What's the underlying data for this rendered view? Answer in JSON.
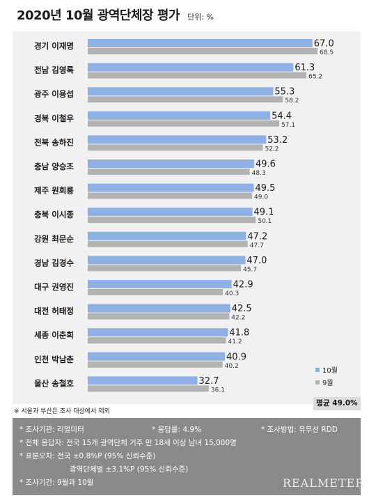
{
  "header": {
    "title": "2020년 10월 광역단체장 평가",
    "unit": "단위: %"
  },
  "chart_data": {
    "type": "bar",
    "orientation": "horizontal",
    "categories": [
      "경기 이재명",
      "전남 김영록",
      "광주 이용섭",
      "경북 이철우",
      "전북 송하진",
      "충남 양승조",
      "제주 원희룡",
      "충북 이시종",
      "강원 최문순",
      "경남 김경수",
      "대구 권영진",
      "대전 허태정",
      "세종 이춘희",
      "인천 박남춘",
      "울산 송철호"
    ],
    "series": [
      {
        "name": "10월",
        "color": "#8fb0e2",
        "values": [
          67.0,
          61.3,
          55.3,
          54.4,
          53.2,
          49.6,
          49.5,
          49.1,
          47.2,
          47.0,
          42.9,
          42.5,
          41.8,
          40.9,
          32.7
        ],
        "labels": [
          "67.0",
          "61.3",
          "55.3",
          "54.4",
          "53.2",
          "49.6",
          "49.5",
          "49.1",
          "47.2",
          "47.0",
          "42.9",
          "42.5",
          "41.8",
          "40.9",
          "32.7"
        ]
      },
      {
        "name": "9월",
        "color": "#b3b3b3",
        "values": [
          68.5,
          65.2,
          58.2,
          57.1,
          52.2,
          48.3,
          49.0,
          50.1,
          47.7,
          45.7,
          40.3,
          42.2,
          41.2,
          40.2,
          36.1
        ],
        "labels": [
          "68.5",
          "65.2",
          "58.2",
          "57.1",
          "52.2",
          "48.3",
          "49.0",
          "50.1",
          "47.7",
          "45.7",
          "40.3",
          "42.2",
          "41.2",
          "40.2",
          "36.1"
        ]
      }
    ],
    "legend_position": "bottom-right",
    "grid": false
  },
  "average": {
    "label": "평균 49.0%"
  },
  "footnote": "※ 서울과 부산은 조사 대상에서 제외",
  "info": {
    "agency": "* 조사기관: 리얼미터",
    "response_rate": "* 응답률: 4.9%",
    "method": "* 조사방법: 유무선 RDD",
    "respondents": "* 전체 응답자: 전국 15개 광역단체 거주 만 18세 이상 남녀 15,000명",
    "error_national": "* 표본오차: 전국 ±0.8%P (95% 신뢰수준)",
    "error_regional": "광역단체별 ±3.1%P (95% 신뢰수준)",
    "period": "* 조사기간: 9월과 10월",
    "brand": "REALMETER"
  }
}
